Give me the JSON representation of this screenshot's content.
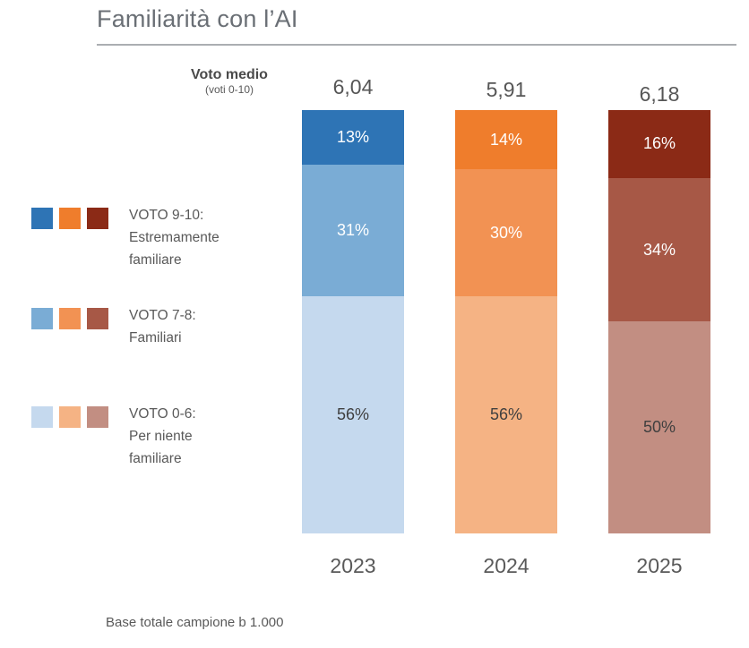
{
  "title": "Familiarità con l’AI",
  "header": {
    "voto_medio_label": "Voto medio",
    "voto_medio_sublabel": "(voti 0-10)"
  },
  "footer_note": "Base totale campione b 1.000",
  "colors": {
    "title_text": "#6A6F75",
    "body_text": "#595959",
    "dark_segment_label": "#3F3F3F",
    "rule": "#ABAEB2"
  },
  "legend": [
    {
      "swatches": [
        "#2E74B5",
        "#EF7D2C",
        "#8B2A16"
      ],
      "lines": [
        "VOTO 9-10:",
        "Estremamente",
        "familiare"
      ]
    },
    {
      "swatches": [
        "#7AACD5",
        "#F29253",
        "#A75846"
      ],
      "lines": [
        "VOTO 7-8:",
        "Familiari"
      ]
    },
    {
      "swatches": [
        "#C5D9EE",
        "#F5B384",
        "#C28E82"
      ],
      "lines": [
        "VOTO 0-6:",
        "Per niente",
        "familiare"
      ]
    }
  ],
  "columns": [
    {
      "year": "2023",
      "mean": "6,04",
      "segments": [
        {
          "value": 13,
          "label": "13%",
          "color": "#2E74B5",
          "label_color": "#FFFFFF"
        },
        {
          "value": 31,
          "label": "31%",
          "color": "#7AACD5",
          "label_color": "#FFFFFF"
        },
        {
          "value": 56,
          "label": "56%",
          "color": "#C5D9EE",
          "label_color": "#3F3F3F"
        }
      ]
    },
    {
      "year": "2024",
      "mean": "5,91",
      "segments": [
        {
          "value": 14,
          "label": "14%",
          "color": "#EF7D2C",
          "label_color": "#FFFFFF"
        },
        {
          "value": 30,
          "label": "30%",
          "color": "#F29253",
          "label_color": "#FFFFFF"
        },
        {
          "value": 56,
          "label": "56%",
          "color": "#F5B384",
          "label_color": "#3F3F3F"
        }
      ]
    },
    {
      "year": "2025",
      "mean": "6,18",
      "segments": [
        {
          "value": 16,
          "label": "16%",
          "color": "#8B2A16",
          "label_color": "#FFFFFF"
        },
        {
          "value": 34,
          "label": "34%",
          "color": "#A75846",
          "label_color": "#FFFFFF"
        },
        {
          "value": 50,
          "label": "50%",
          "color": "#C28E82",
          "label_color": "#3F3F3F"
        }
      ]
    }
  ],
  "chart_data": {
    "type": "bar",
    "stacked": true,
    "title": "Familiarità con l’AI",
    "categories": [
      "2023",
      "2024",
      "2025"
    ],
    "series": [
      {
        "name": "VOTO 9-10: Estremamente familiare",
        "values": [
          13,
          14,
          16
        ]
      },
      {
        "name": "VOTO 7-8: Familiari",
        "values": [
          31,
          30,
          34
        ]
      },
      {
        "name": "VOTO 0-6: Per niente familiare",
        "values": [
          56,
          56,
          50
        ]
      }
    ],
    "units": "%",
    "ylim": [
      0,
      100
    ],
    "grid": false,
    "legend_position": "left",
    "annotations": {
      "voto_medio": {
        "label": "Voto medio",
        "sublabel": "(voti 0-10)",
        "values": [
          "6,04",
          "5,91",
          "6,18"
        ]
      },
      "base_note": "Base totale campione b 1.000"
    },
    "palette_by_category": {
      "2023": [
        "#2E74B5",
        "#7AACD5",
        "#C5D9EE"
      ],
      "2024": [
        "#EF7D2C",
        "#F29253",
        "#F5B384"
      ],
      "2025": [
        "#8B2A16",
        "#A75846",
        "#C28E82"
      ]
    }
  }
}
